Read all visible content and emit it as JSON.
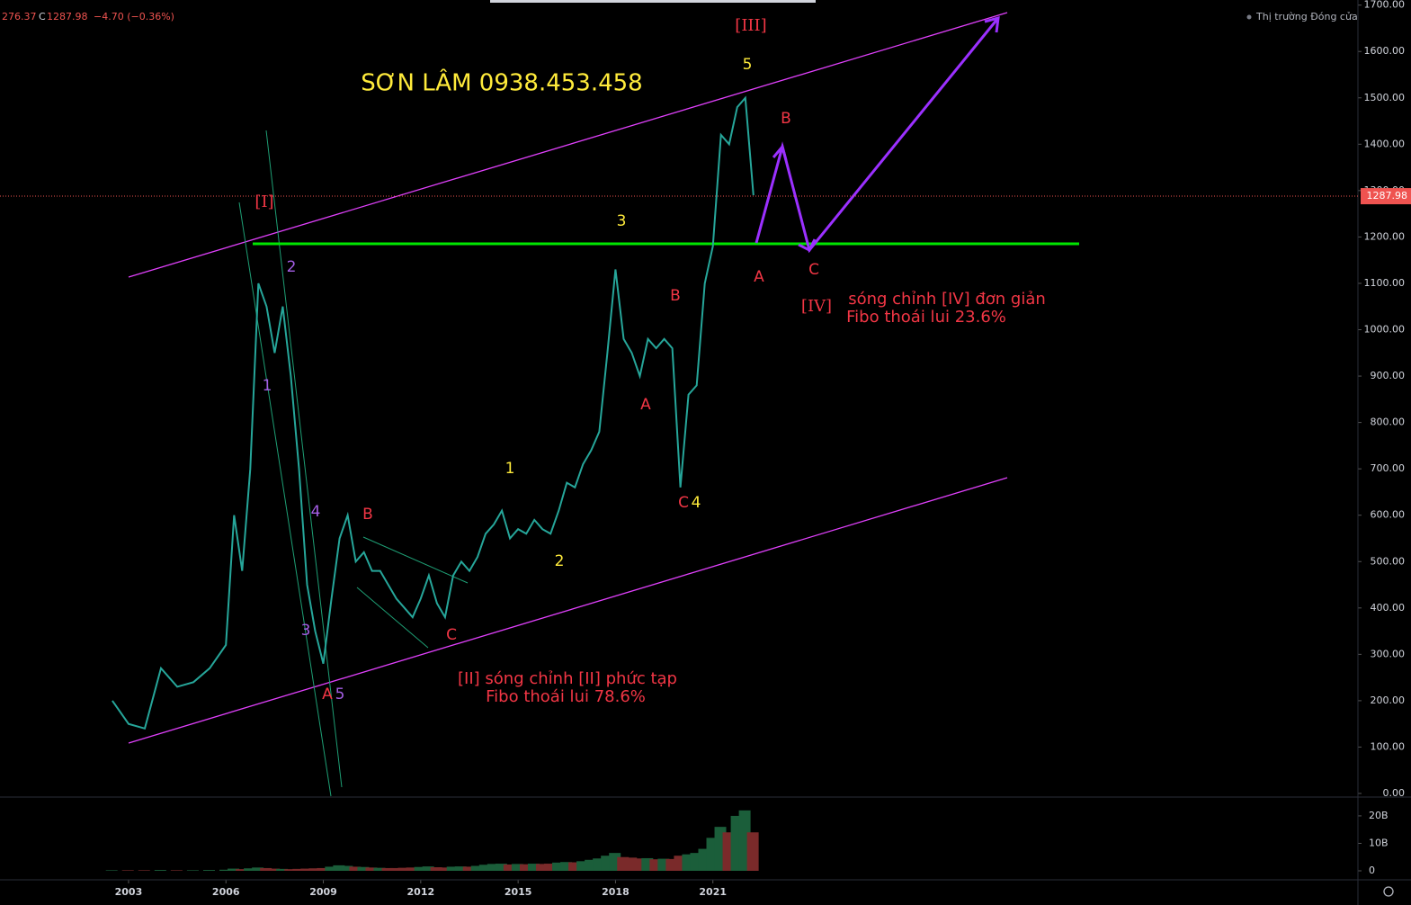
{
  "header": {
    "parts": [
      "276.37",
      "C",
      "1287.98",
      "−4.70 (−0.36%)"
    ],
    "market_status": "Thị trường Đóng cửa"
  },
  "chart_data": {
    "type": "line",
    "x": [
      2002.5,
      2003,
      2003.5,
      2004,
      2004.5,
      2005,
      2005.5,
      2006,
      2006.25,
      2006.5,
      2006.75,
      2007,
      2007.25,
      2007.5,
      2007.75,
      2008,
      2008.25,
      2008.5,
      2008.75,
      2009,
      2009.25,
      2009.5,
      2009.75,
      2010,
      2010.25,
      2010.5,
      2010.75,
      2011,
      2011.25,
      2011.5,
      2011.75,
      2012,
      2012.25,
      2012.5,
      2012.75,
      2013,
      2013.25,
      2013.5,
      2013.75,
      2014,
      2014.25,
      2014.5,
      2014.75,
      2015,
      2015.25,
      2015.5,
      2015.75,
      2016,
      2016.25,
      2016.5,
      2016.75,
      2017,
      2017.25,
      2017.5,
      2017.75,
      2018,
      2018.25,
      2018.5,
      2018.75,
      2019,
      2019.25,
      2019.5,
      2019.75,
      2020,
      2020.25,
      2020.5,
      2020.75,
      2021,
      2021.25,
      2021.5,
      2021.75,
      2022,
      2022.25
    ],
    "values": [
      200,
      150,
      140,
      270,
      230,
      240,
      270,
      320,
      600,
      480,
      700,
      1100,
      1050,
      950,
      1050,
      900,
      700,
      450,
      350,
      280,
      420,
      550,
      600,
      500,
      520,
      480,
      480,
      450,
      420,
      400,
      380,
      420,
      470,
      410,
      380,
      470,
      500,
      480,
      510,
      560,
      580,
      610,
      550,
      570,
      560,
      590,
      570,
      560,
      610,
      670,
      660,
      710,
      740,
      780,
      950,
      1130,
      980,
      950,
      900,
      980,
      960,
      980,
      960,
      660,
      860,
      880,
      1100,
      1180,
      1420,
      1400,
      1480,
      1500,
      1290
    ],
    "color": "#26a69a",
    "xlim": [
      1999.04,
      2040.87
    ],
    "xticks": [
      2003,
      2006,
      2009,
      2012,
      2015,
      2018,
      2021
    ],
    "ylim": [
      0,
      1711
    ],
    "yticks": [
      {
        "value": 0,
        "label": "0.00"
      },
      {
        "value": 100,
        "label": "100.00"
      },
      {
        "value": 200,
        "label": "200.00"
      },
      {
        "value": 300,
        "label": "300.00"
      },
      {
        "value": 400,
        "label": "400.00"
      },
      {
        "value": 500,
        "label": "500.00"
      },
      {
        "value": 600,
        "label": "600.00"
      },
      {
        "value": 700,
        "label": "700.00"
      },
      {
        "value": 800,
        "label": "800.00"
      },
      {
        "value": 900,
        "label": "900.00"
      },
      {
        "value": 1000,
        "label": "1000.00"
      },
      {
        "value": 1100,
        "label": "1100.00"
      },
      {
        "value": 1200,
        "label": "1200.00"
      },
      {
        "value": 1300,
        "label": "1300.00"
      },
      {
        "value": 1400,
        "label": "1400.00"
      },
      {
        "value": 1500,
        "label": "1500.00"
      },
      {
        "value": 1600,
        "label": "1600.00"
      },
      {
        "value": 1700,
        "label": "1700.00"
      }
    ],
    "last_price": 1287.98,
    "volume": {
      "values": [
        0.2,
        0.2,
        0.2,
        0.3,
        0.2,
        0.2,
        0.3,
        0.4,
        0.8,
        0.6,
        0.9,
        1.2,
        1.0,
        0.8,
        0.7,
        0.6,
        0.7,
        0.8,
        0.9,
        1.0,
        1.5,
        2.0,
        1.8,
        1.5,
        1.4,
        1.2,
        1.1,
        1.0,
        1.0,
        1.1,
        1.2,
        1.4,
        1.6,
        1.3,
        1.2,
        1.5,
        1.6,
        1.5,
        1.8,
        2.2,
        2.5,
        2.6,
        2.3,
        2.5,
        2.4,
        2.6,
        2.5,
        2.6,
        3.0,
        3.2,
        3.1,
        3.5,
        4.0,
        4.5,
        5.5,
        6.5,
        5.0,
        4.8,
        4.5,
        4.6,
        4.2,
        4.4,
        4.3,
        5.5,
        6.0,
        6.5,
        8.0,
        12.0,
        16.0,
        14.0,
        20.0,
        22.0,
        14.0
      ],
      "ylim": [
        0,
        26.2
      ],
      "yticks": [
        {
          "value": 0,
          "label": "0"
        },
        {
          "value": 10,
          "label": "10B"
        },
        {
          "value": 20,
          "label": "20B"
        }
      ]
    },
    "annotations": [
      "[III]",
      "5",
      "SƠN LÂM 0938.453.458",
      "B",
      "[I]",
      "3",
      "2",
      "A",
      "C",
      "B",
      "[IV]",
      "sóng chỉnh [IV] đơn giản",
      "Fibo thoái lui 23.6%",
      "1",
      "A",
      "1",
      "C",
      "4",
      "4",
      "B",
      "2",
      "3",
      "C",
      "[II] sóng chỉnh [II] phức tạp",
      "Fibo thoái lui 78.6%",
      "A",
      "5"
    ]
  }
}
